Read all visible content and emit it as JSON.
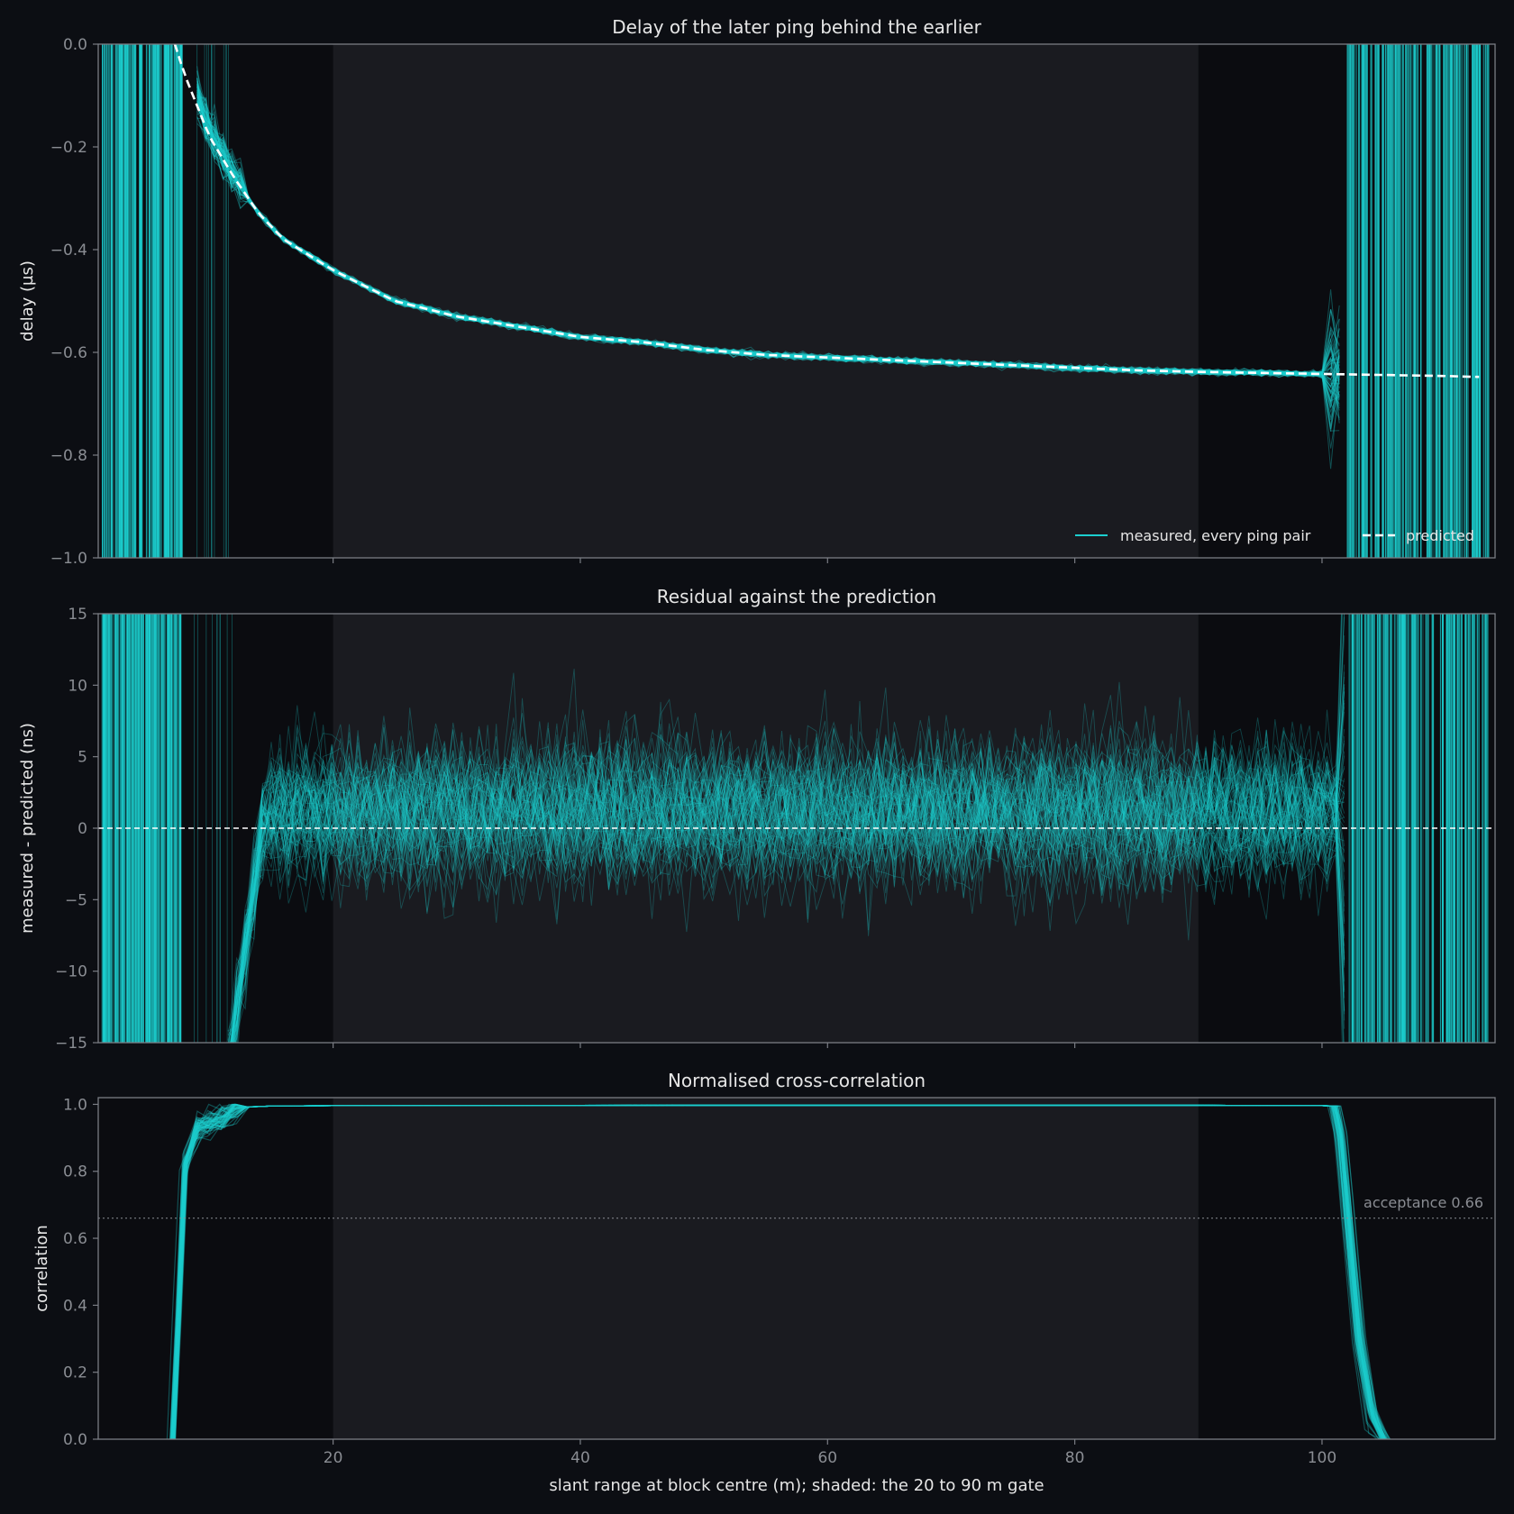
{
  "colors": {
    "background": "#0c0e13",
    "gate_shade": "#1a1b20",
    "trace": "#1ccfcf",
    "predicted": "#ffffff",
    "axis": "#7a7d84",
    "tick_text": "#8a8d93",
    "label_text": "#e6e6e6"
  },
  "x_axis": {
    "label": "slant range at block centre (m); shaded: the 20 to 90 m gate",
    "range": [
      1,
      114
    ],
    "ticks": [
      20,
      40,
      60,
      80,
      100
    ],
    "tick_labels": [
      "20",
      "40",
      "60",
      "80",
      "100"
    ],
    "gate": [
      20,
      90
    ]
  },
  "chart_data": [
    {
      "type": "line",
      "title": "Delay of the later ping behind the earlier",
      "ylabel": "delay (µs)",
      "ylim": [
        -1.0,
        0.0
      ],
      "yticks": [
        0.0,
        -0.2,
        -0.4,
        -0.6,
        -0.8,
        -1.0
      ],
      "ytick_labels": [
        "0.0",
        "−0.2",
        "−0.4",
        "−0.6",
        "−0.8",
        "−1.0"
      ],
      "legend_position": "lower-right",
      "series": [
        {
          "name": "measured, every ping pair",
          "x": [
            9,
            10,
            12,
            14,
            16,
            18,
            20,
            25,
            30,
            35,
            40,
            45,
            50,
            55,
            60,
            65,
            70,
            75,
            80,
            85,
            90,
            95,
            100,
            101
          ],
          "values": [
            -0.1,
            -0.17,
            -0.26,
            -0.33,
            -0.38,
            -0.41,
            -0.44,
            -0.5,
            -0.53,
            -0.55,
            -0.57,
            -0.58,
            -0.595,
            -0.605,
            -0.61,
            -0.615,
            -0.62,
            -0.625,
            -0.63,
            -0.635,
            -0.638,
            -0.64,
            -0.642,
            -0.643
          ]
        },
        {
          "name": "predicted",
          "x": [
            7.2,
            8,
            9,
            10,
            12,
            14,
            16,
            18,
            20,
            25,
            30,
            35,
            40,
            45,
            50,
            55,
            60,
            65,
            70,
            75,
            80,
            85,
            90,
            95,
            100,
            105,
            110,
            113
          ],
          "values": [
            0.0,
            -0.06,
            -0.12,
            -0.18,
            -0.26,
            -0.33,
            -0.38,
            -0.41,
            -0.44,
            -0.5,
            -0.53,
            -0.55,
            -0.57,
            -0.58,
            -0.595,
            -0.605,
            -0.61,
            -0.615,
            -0.62,
            -0.625,
            -0.63,
            -0.635,
            -0.638,
            -0.64,
            -0.642,
            -0.644,
            -0.646,
            -0.648
          ]
        }
      ]
    },
    {
      "type": "line",
      "title": "Residual against the prediction",
      "ylabel": "measured - predicted (ns)",
      "ylim": [
        -15,
        15
      ],
      "yticks": [
        15,
        10,
        5,
        0,
        -5,
        -10,
        -15
      ],
      "ytick_labels": [
        "15",
        "10",
        "5",
        "0",
        "−5",
        "−10",
        "−15"
      ],
      "reference_line": 0,
      "residual_spread_ns": 2.2,
      "residual_mean_ns": 1.0
    },
    {
      "type": "line",
      "title": "Normalised cross-correlation",
      "ylabel": "correlation",
      "ylim": [
        0.0,
        1.02
      ],
      "yticks": [
        1.0,
        0.8,
        0.6,
        0.4,
        0.2,
        0.0
      ],
      "ytick_labels": [
        "1.0",
        "0.8",
        "0.6",
        "0.4",
        "0.2",
        "0.0"
      ],
      "acceptance": 0.66,
      "acceptance_label": "acceptance 0.66",
      "x": [
        7.0,
        7.5,
        8.0,
        9.0,
        10.0,
        11.0,
        12.0,
        13.0,
        15.0,
        20.0,
        50.0,
        90.0,
        100.0,
        101.0,
        101.5,
        102.0,
        103.0,
        104.0,
        105.0
      ],
      "values": [
        0.0,
        0.4,
        0.82,
        0.93,
        0.94,
        0.96,
        0.985,
        0.992,
        0.995,
        0.996,
        0.997,
        0.997,
        0.996,
        0.995,
        0.9,
        0.7,
        0.3,
        0.08,
        0.0
      ]
    }
  ]
}
